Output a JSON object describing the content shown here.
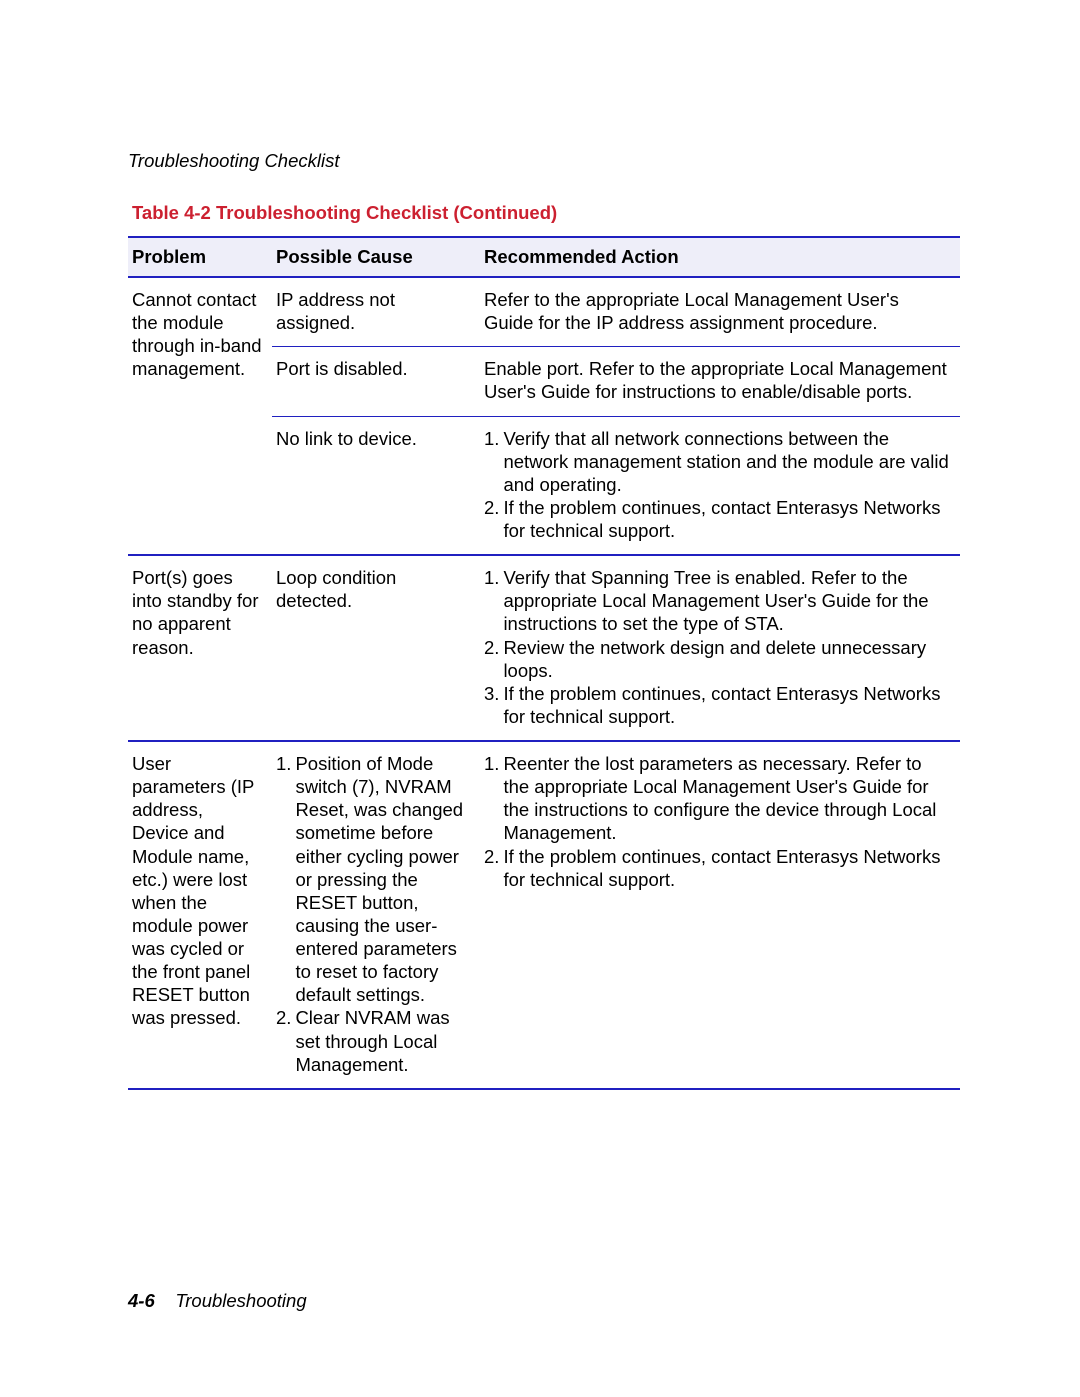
{
  "page_header": "Troubleshooting Checklist",
  "table_caption": "Table 4-2   Troubleshooting Checklist  (Continued)",
  "columns": {
    "problem": "Problem",
    "cause": "Possible Cause",
    "action": "Recommended Action"
  },
  "rows": {
    "r1": {
      "problem": "Cannot contact the module through in-band management.",
      "sub1": {
        "cause": "IP address not assigned.",
        "action": "Refer to the appropriate Local Management User's Guide for the IP address assignment procedure."
      },
      "sub2": {
        "cause": "Port is disabled.",
        "action": "Enable port. Refer to the appropriate Local Management User's Guide for instructions to enable/disable ports."
      },
      "sub3": {
        "cause": "No link to device.",
        "action_items": {
          "n1": "1.",
          "t1": "Verify that all network connections between the network management station and the module are valid and operating.",
          "n2": "2.",
          "t2": "If the problem continues, contact Enterasys Networks for technical support."
        }
      }
    },
    "r2": {
      "problem": "Port(s) goes into standby for no apparent reason.",
      "cause": "Loop condition detected.",
      "action_items": {
        "n1": "1.",
        "t1": "Verify that Spanning Tree is enabled. Refer to the appropriate Local Management User's Guide for the instructions to set the type of STA.",
        "n2": "2.",
        "t2": "Review the network design and delete unnecessary loops.",
        "n3": "3.",
        "t3": "If the problem continues, contact Enterasys Networks for technical support."
      }
    },
    "r3": {
      "problem": "User parameters (IP address, Device and Module name, etc.) were lost when the module power was cycled or the front panel RESET button was pressed.",
      "cause_items": {
        "n1": "1.",
        "t1": "Position of Mode switch (7), NVRAM Reset, was changed sometime before either cycling power or pressing the RESET button, causing the user-entered parameters to reset to factory default settings.",
        "n2": "2.",
        "t2": "Clear NVRAM was set through Local Management."
      },
      "action_items": {
        "n1": "1.",
        "t1": "Reenter the lost parameters as necessary. Refer to the appropriate Local Management User's Guide for the instructions to configure the device through Local Management.",
        "n2": "2.",
        "t2": "If the problem continues, contact Enterasys Networks for technical support."
      }
    }
  },
  "footer": {
    "page_num": "4-6",
    "section": "Troubleshooting"
  }
}
